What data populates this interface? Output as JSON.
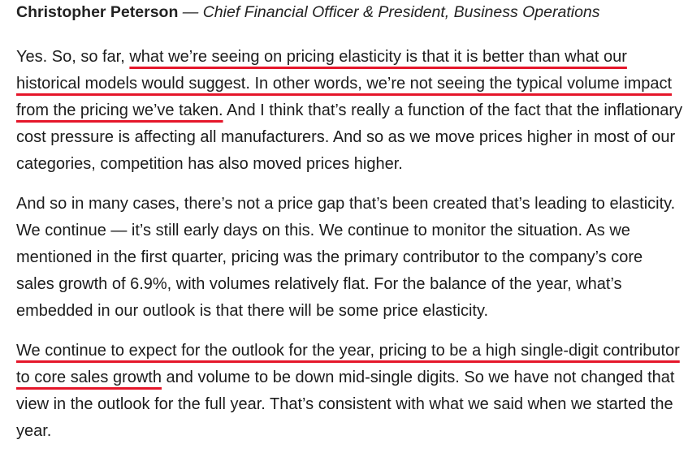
{
  "speaker": {
    "name": "Christopher Peterson",
    "dash": " — ",
    "title": "Chief Financial Officer & President, Business Operations"
  },
  "paragraphs": [
    {
      "segments": [
        {
          "text": "Yes. So, so far, ",
          "highlight": false
        },
        {
          "text": "what we’re seeing on pricing elasticity is that it is better than what our historical models would suggest. In other words, we’re not seeing the typical volume impact from the pricing we’ve taken.",
          "highlight": true
        },
        {
          "text": " And I think that’s really a function of the fact that the inflationary cost pressure is affecting all manufacturers. And so as we move prices higher in most of our categories, competition has also moved prices higher.",
          "highlight": false
        }
      ]
    },
    {
      "segments": [
        {
          "text": "And so in many cases, there’s not a price gap that’s been created that’s leading to elasticity. We continue — it’s still early days on this. We continue to monitor the situation. As we mentioned in the first quarter, pricing was the primary contributor to the company’s core sales growth of 6.9%, with volumes relatively flat. For the balance of the year, what’s embedded in our outlook is that there will be some price elasticity.",
          "highlight": false
        }
      ]
    },
    {
      "segments": [
        {
          "text": "We continue to expect for the outlook for the year, pricing to be a high single-digit contributor to core sales growth",
          "highlight": true
        },
        {
          "text": " and volume to be down mid-single digits. So we have not changed that view in the outlook for the full year. That’s consistent with what we said when we started the year.",
          "highlight": false
        }
      ]
    }
  ],
  "colors": {
    "highlight_underline": "#e5162a",
    "text": "#1c1c1c"
  }
}
